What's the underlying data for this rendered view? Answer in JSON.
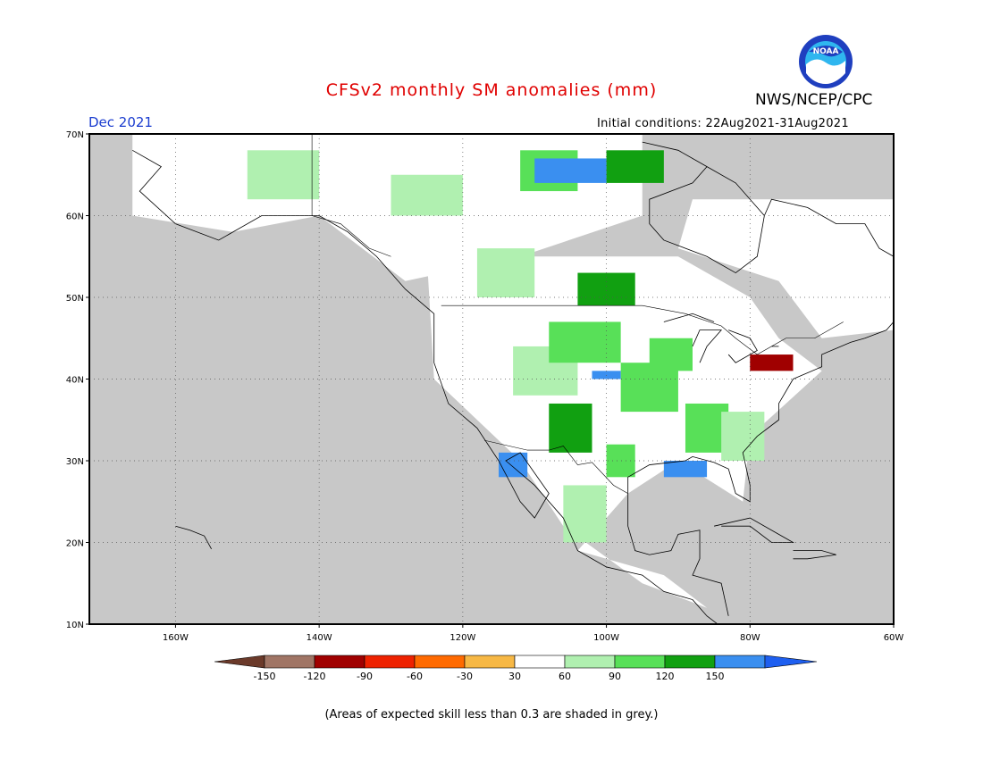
{
  "header": {
    "title": "CFSv2 monthly SM anomalies (mm)",
    "agency": "NWS/NCEP/CPC",
    "logo_text": "NOAA",
    "target_month": "Dec 2021",
    "initial_conditions": "Initial conditions: 22Aug2021-31Aug2021"
  },
  "map": {
    "region": "North America",
    "projection": "lat-lon",
    "lon_range": [
      -172,
      -60
    ],
    "lat_range": [
      10,
      70
    ],
    "lat_labels": [
      "70N",
      "60N",
      "50N",
      "40N",
      "30N",
      "20N",
      "10N"
    ],
    "lon_labels": [
      "160W",
      "140W",
      "120W",
      "100W",
      "80W",
      "60W"
    ],
    "grid": "dotted",
    "low_skill_color": "#c8c8c8",
    "coastline_color": "#000000"
  },
  "colorbar": {
    "units": "mm",
    "tick_labels": [
      "-150",
      "-120",
      "-90",
      "-60",
      "-30",
      "30",
      "60",
      "90",
      "120",
      "150"
    ],
    "colors": [
      "#6b3a2a",
      "#a07565",
      "#a00000",
      "#ee2200",
      "#ff6a00",
      "#f7b845",
      "#ffffff",
      "#b0f0b0",
      "#58e058",
      "#11a011",
      "#3a8ff0",
      "#1e5ff0"
    ]
  },
  "footnote": "(Areas of expected skill less than 0.3 are shaded in grey.)"
}
